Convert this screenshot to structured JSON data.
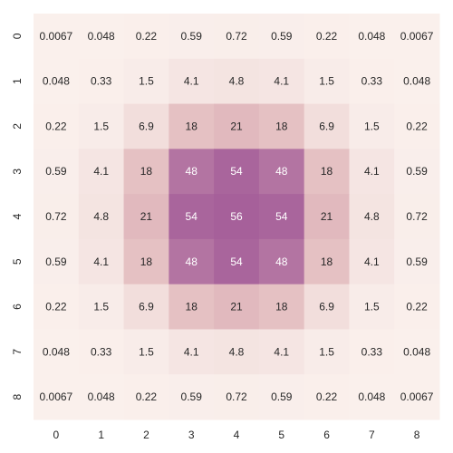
{
  "chart_data": {
    "type": "heatmap",
    "title": "",
    "xlabel": "",
    "ylabel": "",
    "x_ticks": [
      "0",
      "1",
      "2",
      "3",
      "4",
      "5",
      "6",
      "7",
      "8"
    ],
    "y_ticks": [
      "0",
      "1",
      "2",
      "3",
      "4",
      "5",
      "6",
      "7",
      "8"
    ],
    "values": [
      [
        0.0067,
        0.048,
        0.22,
        0.59,
        0.72,
        0.59,
        0.22,
        0.048,
        0.0067
      ],
      [
        0.048,
        0.33,
        1.5,
        4.1,
        4.8,
        4.1,
        1.5,
        0.33,
        0.048
      ],
      [
        0.22,
        1.5,
        6.9,
        18,
        21,
        18,
        6.9,
        1.5,
        0.22
      ],
      [
        0.59,
        4.1,
        18,
        48,
        54,
        48,
        18,
        4.1,
        0.59
      ],
      [
        0.72,
        4.8,
        21,
        54,
        56,
        54,
        21,
        4.8,
        0.72
      ],
      [
        0.59,
        4.1,
        18,
        48,
        54,
        48,
        18,
        4.1,
        0.59
      ],
      [
        0.22,
        1.5,
        6.9,
        18,
        21,
        18,
        6.9,
        1.5,
        0.22
      ],
      [
        0.048,
        0.33,
        1.5,
        4.1,
        4.8,
        4.1,
        1.5,
        0.33,
        0.048
      ],
      [
        0.0067,
        0.048,
        0.22,
        0.59,
        0.72,
        0.59,
        0.22,
        0.048,
        0.0067
      ]
    ],
    "value_range": [
      0,
      56
    ],
    "colormap": {
      "low": "#faf0ec",
      "mid": "#e3bdbf",
      "high": "#a6609a",
      "text_dark": "#262626",
      "text_light": "#ffffff"
    },
    "grid": false,
    "colorbar": false
  }
}
